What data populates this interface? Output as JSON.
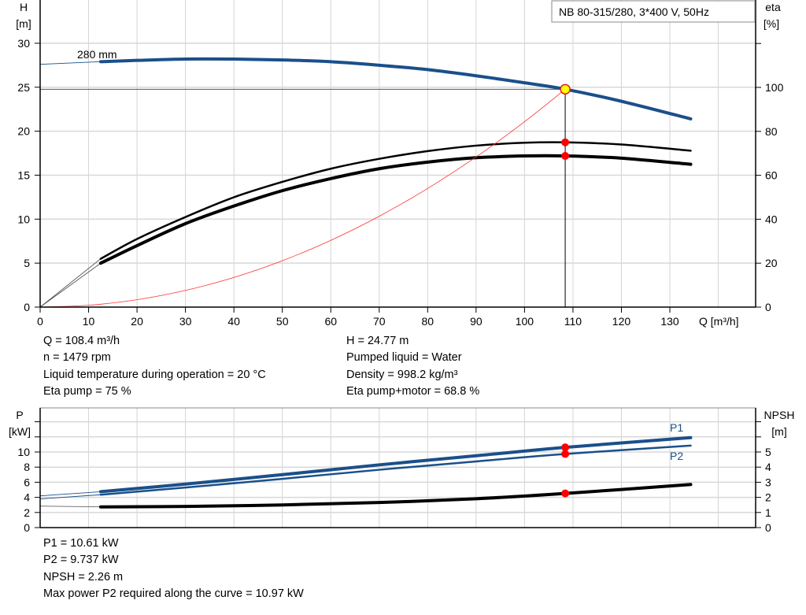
{
  "chart_data": [
    {
      "type": "line",
      "title": "NB 80-315/280, 3*400 V, 50Hz",
      "xlabel": "Q [m³/h]",
      "ylabel": [
        "H",
        "[m]"
      ],
      "y2label": [
        "eta",
        "[%]"
      ],
      "xlim": [
        0,
        147.7
      ],
      "ylim": [
        0,
        35
      ],
      "y2lim": [
        0,
        140
      ],
      "grid": true,
      "xticks": [
        0,
        10,
        20,
        30,
        40,
        50,
        60,
        70,
        80,
        90,
        100,
        110,
        120,
        130
      ],
      "yticks": [
        0,
        5,
        10,
        15,
        20,
        25,
        30
      ],
      "y2ticks": [
        0,
        20,
        40,
        60,
        80,
        100
      ],
      "curve_label": "280 mm",
      "series": [
        {
          "id": "head",
          "axis": "left",
          "color": "#1a4f8a",
          "x": [
            12.5,
            20,
            30,
            40,
            50,
            60,
            70,
            80,
            90,
            100,
            108.4,
            120,
            134.3
          ],
          "y": [
            27.9,
            28.05,
            28.2,
            28.2,
            28.1,
            27.9,
            27.5,
            27.0,
            26.3,
            25.5,
            24.77,
            23.4,
            21.4
          ],
          "extrapolated_from": [
            0,
            27.6
          ]
        },
        {
          "id": "eta-pump",
          "axis": "right",
          "color": "#000000",
          "x": [
            12.5,
            20,
            30,
            40,
            50,
            60,
            70,
            80,
            90,
            100,
            108.4,
            120,
            134.3
          ],
          "y": [
            22,
            31,
            41,
            50,
            57,
            63,
            67.5,
            71,
            73.5,
            74.8,
            75,
            74,
            71.2
          ],
          "extrapolated_from": [
            0,
            0
          ]
        },
        {
          "id": "eta-pump-motor",
          "axis": "right",
          "color": "#000000",
          "x": [
            12.5,
            20,
            30,
            40,
            50,
            60,
            70,
            80,
            90,
            100,
            108.4,
            120,
            134.3
          ],
          "y": [
            20,
            28,
            38,
            46,
            53,
            58.5,
            63,
            66,
            68,
            68.8,
            68.8,
            67.8,
            65
          ],
          "extrapolated_from": [
            0,
            0
          ]
        },
        {
          "id": "system-curve",
          "axis": "left",
          "color": "#ff3030",
          "x": [
            0,
            10,
            20,
            30,
            40,
            50,
            60,
            70,
            80,
            90,
            100,
            108.4
          ],
          "y": [
            0,
            0.21,
            0.84,
            1.9,
            3.37,
            5.27,
            7.59,
            10.33,
            13.49,
            17.07,
            21.08,
            24.77
          ]
        }
      ],
      "operating_point": {
        "q": 108.4,
        "h": 24.77,
        "eta_pump": 75,
        "eta_pump_motor": 68.8,
        "color": "#ffff00"
      }
    },
    {
      "type": "line",
      "xlim": [
        0,
        147.7
      ],
      "ylabel": [
        "P",
        "[kW]"
      ],
      "y2label": [
        "NPSH",
        "[m]"
      ],
      "ylim": [
        0,
        16
      ],
      "y2lim": [
        0,
        8
      ],
      "grid": true,
      "yticks": [
        0,
        2,
        4,
        6,
        8,
        10
      ],
      "yticks_unlabeled": [
        12,
        14
      ],
      "y2ticks": [
        0,
        1,
        2,
        3,
        4,
        5
      ],
      "y2ticks_unlabeled": [
        6,
        7
      ],
      "series": [
        {
          "id": "p1",
          "name": "P1",
          "axis": "left",
          "color": "#1a4f8a",
          "x": [
            12.5,
            30,
            50,
            70,
            90,
            108.4,
            134.3
          ],
          "y": [
            4.75,
            5.75,
            7.0,
            8.3,
            9.5,
            10.61,
            11.9
          ],
          "extrapolated_from": [
            0,
            4.2
          ]
        },
        {
          "id": "p2",
          "name": "P2",
          "axis": "left",
          "color": "#1a4f8a",
          "x": [
            12.5,
            30,
            50,
            70,
            90,
            108.4,
            134.3
          ],
          "y": [
            4.35,
            5.3,
            6.45,
            7.65,
            8.75,
            9.737,
            10.85
          ],
          "extrapolated_from": [
            0,
            3.8
          ]
        },
        {
          "id": "npsh",
          "axis": "right",
          "color": "#000000",
          "x": [
            12.5,
            30,
            50,
            70,
            90,
            108.4,
            134.3
          ],
          "y": [
            1.37,
            1.4,
            1.5,
            1.66,
            1.91,
            2.26,
            2.85
          ],
          "extrapolated_from": [
            0,
            1.42
          ]
        }
      ],
      "operating_point": {
        "q": 108.4,
        "p1": 10.61,
        "p2": 9.737,
        "npsh": 2.26
      }
    }
  ],
  "info_top": {
    "left": [
      "Q = 108.4 m³/h",
      "n = 1479 rpm",
      "Liquid temperature during operation = 20 °C",
      "Eta pump = 75 %"
    ],
    "right": [
      "H = 24.77 m",
      "Pumped liquid = Water",
      "Density = 998.2 kg/m³",
      "Eta pump+motor = 68.8 %"
    ]
  },
  "info_bottom": [
    "P1 = 10.61 kW",
    "P2 = 9.737 kW",
    "NPSH = 2.26 m",
    "Max power P2 required along the curve = 10.97 kW"
  ]
}
